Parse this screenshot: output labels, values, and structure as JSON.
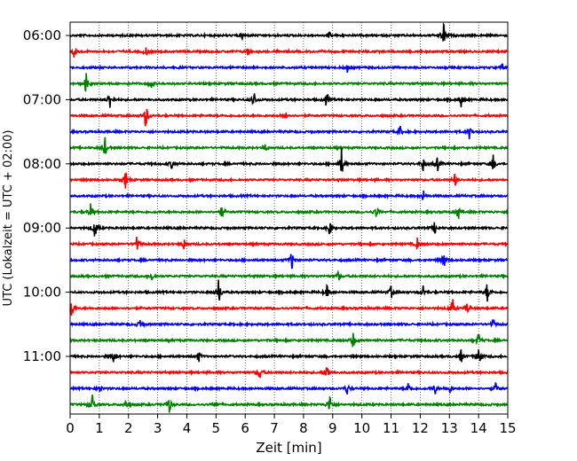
{
  "chart_data": {
    "type": "line",
    "title": "",
    "xlabel": "Zeit  [min]",
    "ylabel": "UTC (Lokalzeit = UTC + 02:00)",
    "xlim": [
      0,
      15
    ],
    "x_ticks": [
      0,
      1,
      2,
      3,
      4,
      5,
      6,
      7,
      8,
      9,
      10,
      11,
      12,
      13,
      14,
      15
    ],
    "grid": {
      "x": true,
      "y": false,
      "style": "dotted"
    },
    "y_ticks": [
      "06:00",
      "07:00",
      "08:00",
      "09:00",
      "10:00",
      "11:00"
    ],
    "y_tick_rows": [
      0,
      4,
      8,
      12,
      16,
      20
    ],
    "row_minutes": 15,
    "row_colors": [
      "#000000",
      "#ff0000",
      "#0000ff",
      "#008000"
    ],
    "traces": [
      {
        "start": "06:00",
        "color": "#000000",
        "events": [
          [
            12.8,
            1.3
          ],
          [
            8.9,
            0.4
          ],
          [
            5.9,
            0.4
          ]
        ]
      },
      {
        "start": "06:15",
        "color": "#ff0000",
        "events": [
          [
            0.15,
            0.9
          ],
          [
            2.6,
            0.6
          ],
          [
            6.1,
            0.5
          ]
        ]
      },
      {
        "start": "06:30",
        "color": "#0000ff",
        "events": [
          [
            9.5,
            0.5
          ],
          [
            14.8,
            0.4
          ]
        ]
      },
      {
        "start": "06:45",
        "color": "#008000",
        "events": [
          [
            0.55,
            1.2
          ],
          [
            2.8,
            0.6
          ]
        ]
      },
      {
        "start": "07:00",
        "color": "#000000",
        "events": [
          [
            1.35,
            1.1
          ],
          [
            6.3,
            0.9
          ],
          [
            8.8,
            0.9
          ],
          [
            13.4,
            0.9
          ]
        ]
      },
      {
        "start": "07:15",
        "color": "#ff0000",
        "events": [
          [
            2.6,
            1.4
          ],
          [
            7.4,
            0.4
          ]
        ]
      },
      {
        "start": "07:30",
        "color": "#0000ff",
        "events": [
          [
            11.3,
            0.6
          ],
          [
            13.7,
            0.8
          ]
        ]
      },
      {
        "start": "07:45",
        "color": "#008000",
        "events": [
          [
            1.2,
            1.0
          ],
          [
            6.7,
            0.4
          ]
        ]
      },
      {
        "start": "08:00",
        "color": "#000000",
        "events": [
          [
            3.5,
            0.6
          ],
          [
            9.3,
            1.6
          ],
          [
            12.1,
            0.8
          ],
          [
            12.6,
            0.7
          ],
          [
            14.5,
            1.0
          ]
        ]
      },
      {
        "start": "08:15",
        "color": "#ff0000",
        "events": [
          [
            1.9,
            0.9
          ],
          [
            13.2,
            0.7
          ]
        ]
      },
      {
        "start": "08:30",
        "color": "#0000ff",
        "events": [
          [
            12.1,
            0.6
          ]
        ]
      },
      {
        "start": "08:45",
        "color": "#008000",
        "events": [
          [
            0.7,
            0.8
          ],
          [
            5.2,
            0.7
          ],
          [
            10.5,
            0.7
          ],
          [
            13.3,
            0.8
          ]
        ]
      },
      {
        "start": "09:00",
        "color": "#000000",
        "events": [
          [
            0.85,
            1.4
          ],
          [
            8.9,
            0.9
          ],
          [
            12.5,
            0.6
          ]
        ]
      },
      {
        "start": "09:15",
        "color": "#ff0000",
        "events": [
          [
            2.3,
            0.9
          ],
          [
            3.9,
            0.6
          ],
          [
            11.9,
            0.6
          ]
        ]
      },
      {
        "start": "09:30",
        "color": "#0000ff",
        "events": [
          [
            7.6,
            1.0
          ],
          [
            12.8,
            1.0
          ]
        ]
      },
      {
        "start": "09:45",
        "color": "#008000",
        "events": [
          [
            2.8,
            0.5
          ],
          [
            9.2,
            0.5
          ]
        ]
      },
      {
        "start": "10:00",
        "color": "#000000",
        "events": [
          [
            5.1,
            1.5
          ],
          [
            8.8,
            0.6
          ],
          [
            11.0,
            0.6
          ],
          [
            12.1,
            0.7
          ],
          [
            14.3,
            1.1
          ]
        ]
      },
      {
        "start": "10:15",
        "color": "#ff0000",
        "events": [
          [
            0.05,
            1.3
          ],
          [
            13.1,
            1.0
          ],
          [
            13.6,
            0.6
          ]
        ]
      },
      {
        "start": "10:30",
        "color": "#0000ff",
        "events": [
          [
            2.4,
            0.6
          ],
          [
            14.5,
            0.5
          ]
        ]
      },
      {
        "start": "10:45",
        "color": "#008000",
        "events": [
          [
            9.7,
            0.8
          ],
          [
            14.0,
            0.8
          ]
        ]
      },
      {
        "start": "11:00",
        "color": "#000000",
        "events": [
          [
            1.5,
            0.7
          ],
          [
            4.4,
            0.6
          ],
          [
            13.4,
            0.7
          ],
          [
            14.0,
            1.3
          ]
        ]
      },
      {
        "start": "11:15",
        "color": "#ff0000",
        "events": [
          [
            6.5,
            0.9
          ],
          [
            8.8,
            1.0
          ]
        ]
      },
      {
        "start": "11:30",
        "color": "#0000ff",
        "events": [
          [
            1.0,
            0.5
          ],
          [
            9.5,
            0.7
          ],
          [
            11.6,
            0.7
          ],
          [
            12.5,
            0.6
          ],
          [
            13.0,
            0.5
          ],
          [
            14.6,
            0.6
          ]
        ]
      },
      {
        "start": "11:45",
        "color": "#008000",
        "events": [
          [
            0.75,
            1.3
          ],
          [
            1.9,
            0.6
          ],
          [
            3.4,
            0.9
          ],
          [
            5.0,
            0.5
          ],
          [
            8.9,
            1.0
          ]
        ]
      }
    ]
  }
}
